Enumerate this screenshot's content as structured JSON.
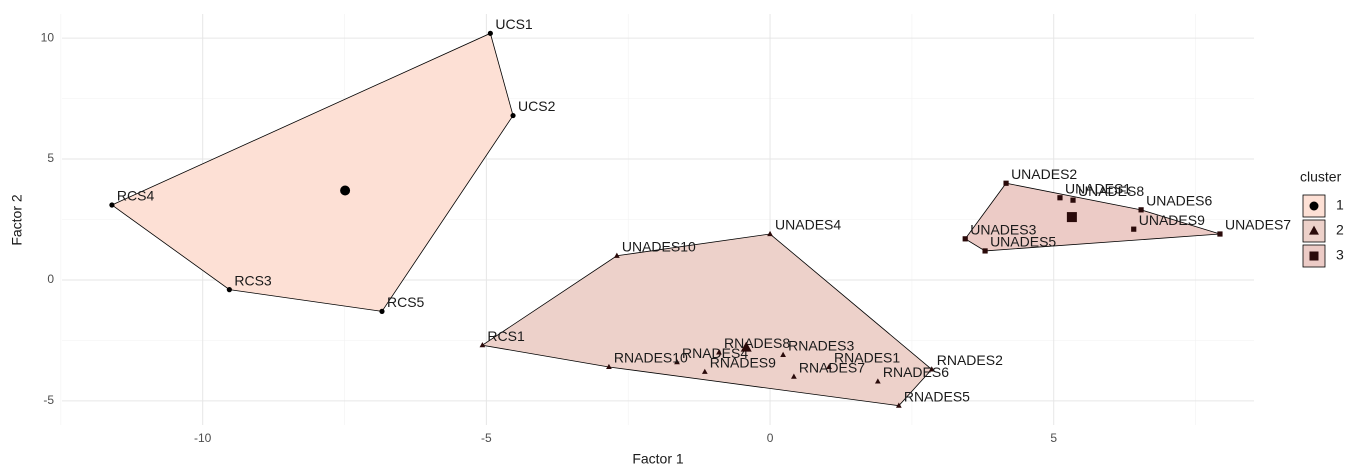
{
  "chart_data": {
    "type": "scatter",
    "x_label": "Factor 1",
    "y_label": "Factor 2",
    "xlim": [
      -12.48,
      8.53
    ],
    "ylim": [
      -6.0,
      11.0
    ],
    "xticks": [
      -10,
      -5,
      0,
      5
    ],
    "yticks": [
      -5,
      0,
      5,
      10
    ],
    "xminorticks": [
      -12.5,
      -7.5,
      -2.5,
      2.5,
      7.5
    ],
    "yminorticks": [
      -2.5,
      2.5,
      7.5
    ],
    "grid": true,
    "legend_title": "cluster",
    "legend": "right",
    "series": [
      {
        "name": "1",
        "shape": "circle",
        "color": "#000000",
        "hull_color": "#fde0d5",
        "centroid": [
          -7.49,
          3.7
        ],
        "points": [
          {
            "label": "UCS1",
            "x": -4.93,
            "y": 10.2
          },
          {
            "label": "UCS2",
            "x": -4.53,
            "y": 6.8
          },
          {
            "label": "RCS4",
            "x": -11.6,
            "y": 3.1
          },
          {
            "label": "RCS3",
            "x": -9.53,
            "y": -0.4
          },
          {
            "label": "RCS5",
            "x": -6.84,
            "y": -1.3
          }
        ]
      },
      {
        "name": "2",
        "shape": "triangle",
        "color": "#2a0a0a",
        "hull_color": "#edd1ca",
        "centroid": [
          -0.42,
          -2.8
        ],
        "points": [
          {
            "label": "UNADES10",
            "x": -2.7,
            "y": 1.0
          },
          {
            "label": "UNADES4",
            "x": 0.0,
            "y": 1.9
          },
          {
            "label": "RCS1",
            "x": -5.07,
            "y": -2.7
          },
          {
            "label": "RNADES4",
            "x": -1.64,
            "y": -3.4
          },
          {
            "label": "RNADES8",
            "x": -0.9,
            "y": -3.0
          },
          {
            "label": "RNADES3",
            "x": 0.23,
            "y": -3.1
          },
          {
            "label": "RNADES2",
            "x": 2.85,
            "y": -3.7
          },
          {
            "label": "RNADES1",
            "x": 1.04,
            "y": -3.6
          },
          {
            "label": "RNADES10",
            "x": -2.84,
            "y": -3.6
          },
          {
            "label": "RNADES9",
            "x": -1.15,
            "y": -3.8
          },
          {
            "label": "RNADES7",
            "x": 0.42,
            "y": -4.0
          },
          {
            "label": "RNADES6",
            "x": 1.9,
            "y": -4.2
          },
          {
            "label": "RNADES5",
            "x": 2.27,
            "y": -5.2
          }
        ]
      },
      {
        "name": "3",
        "shape": "square",
        "color": "#2a0a0a",
        "hull_color": "#eccbc6",
        "centroid": [
          5.32,
          2.6
        ],
        "points": [
          {
            "label": "UNADES2",
            "x": 4.16,
            "y": 4.0
          },
          {
            "label": "UNADES1",
            "x": 5.11,
            "y": 3.4
          },
          {
            "label": "UNADES8",
            "x": 5.34,
            "y": 3.3
          },
          {
            "label": "UNADES6",
            "x": 6.54,
            "y": 2.9
          },
          {
            "label": "UNADES7",
            "x": 7.93,
            "y": 1.9
          },
          {
            "label": "UNADES3",
            "x": 3.44,
            "y": 1.7
          },
          {
            "label": "UNADES5",
            "x": 3.79,
            "y": 1.2
          },
          {
            "label": "UNADES9",
            "x": 6.41,
            "y": 2.1
          }
        ]
      }
    ]
  }
}
